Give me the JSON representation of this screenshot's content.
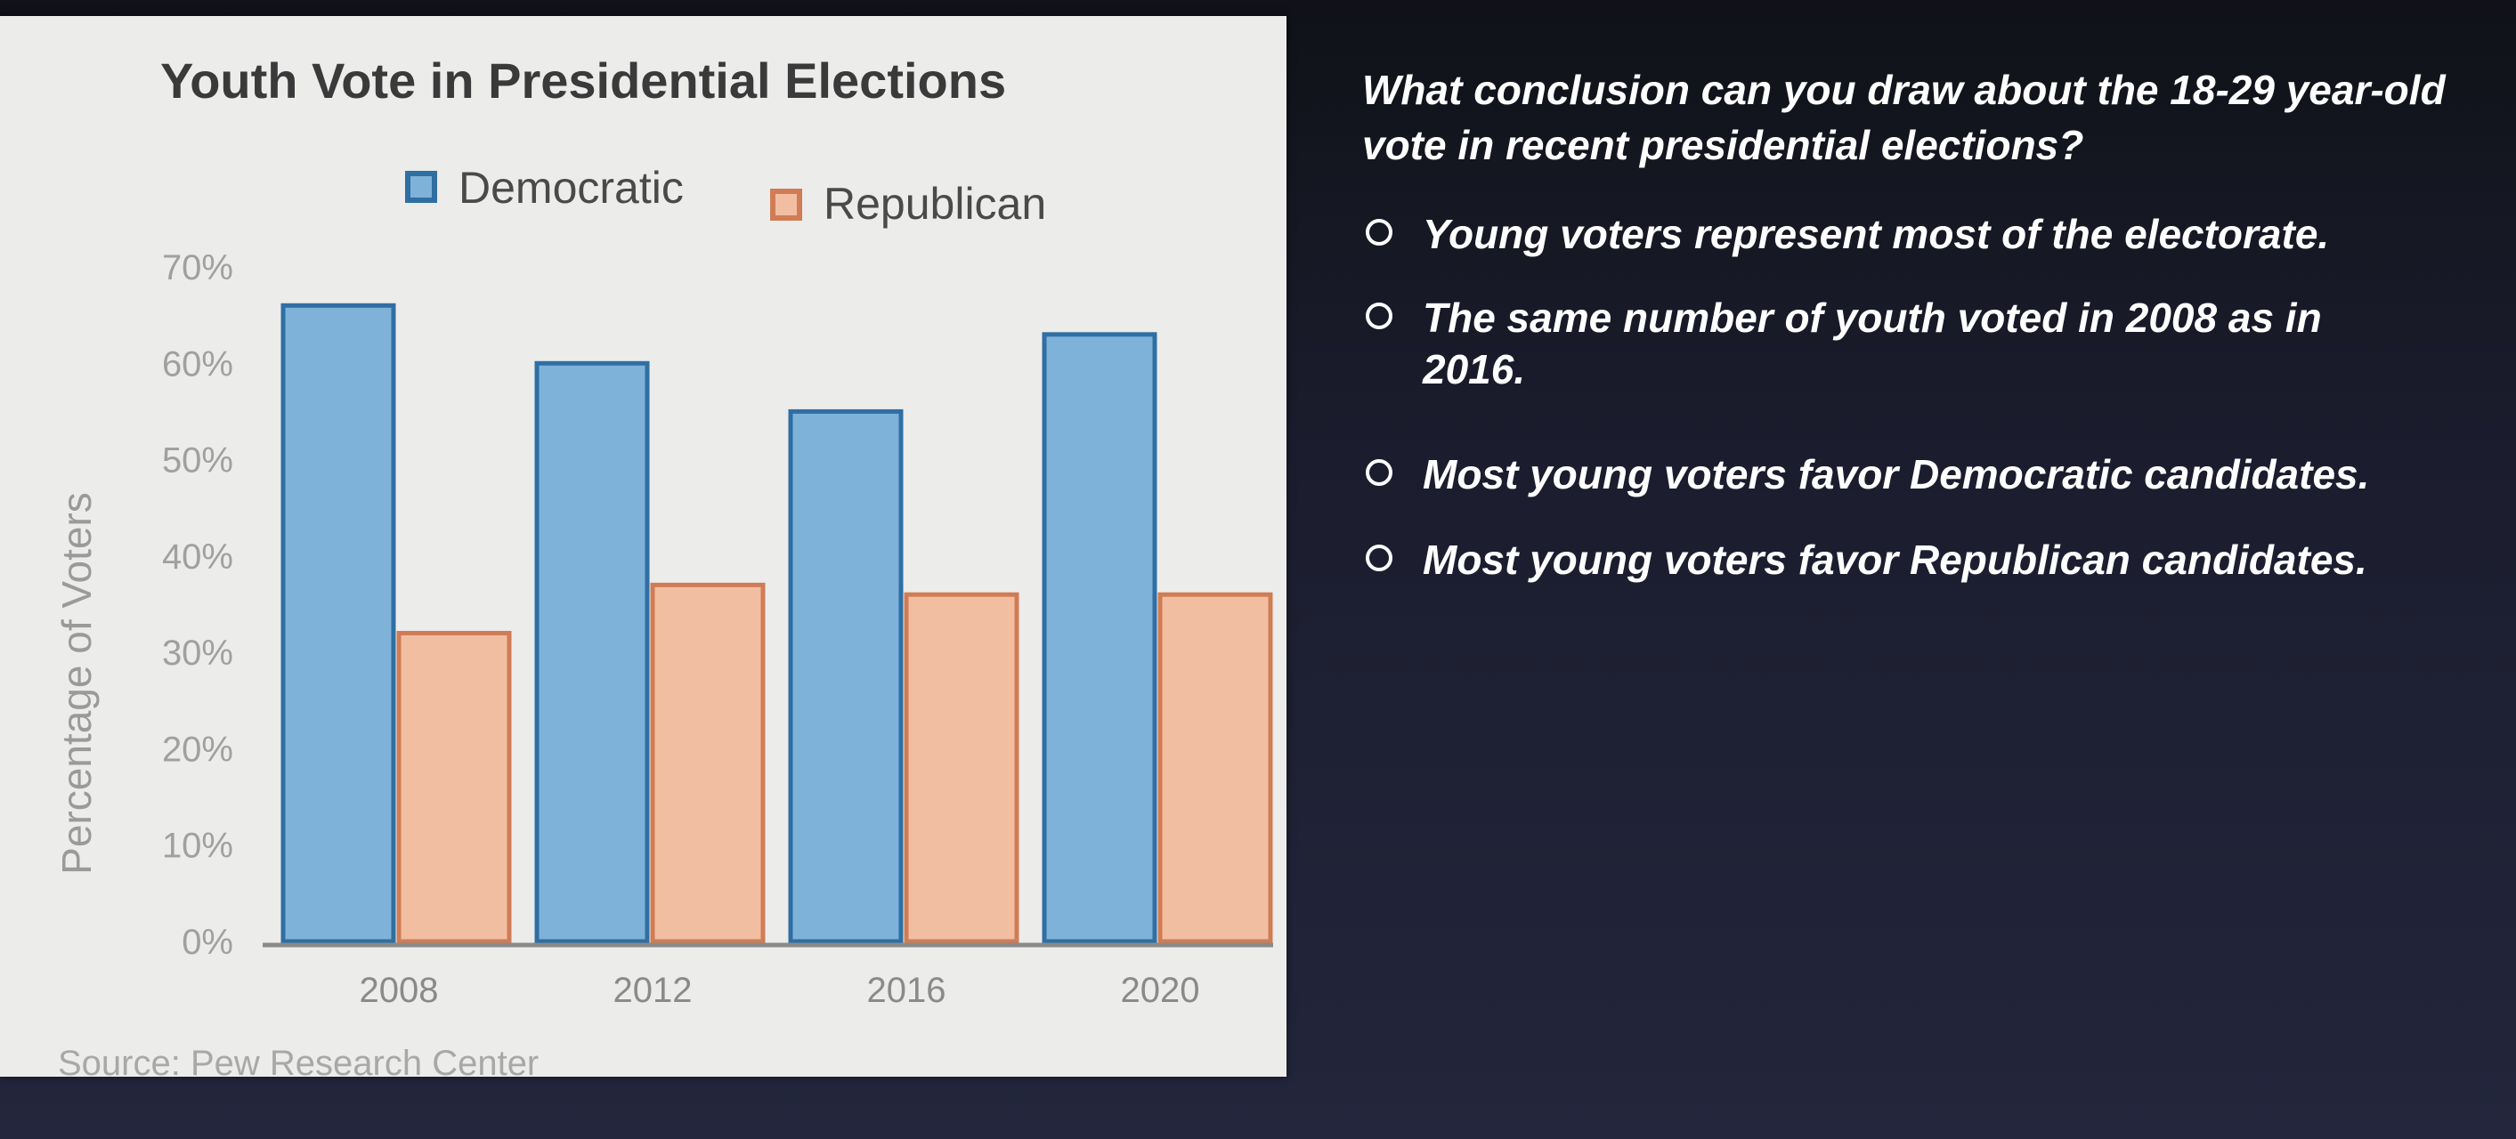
{
  "question": {
    "text": "What conclusion can you draw about the 18-29 year-old vote in recent presidential elections?",
    "options": [
      {
        "label": "Young voters represent most of the electorate."
      },
      {
        "label": "The same number of youth voted in 2008 as in 2016."
      },
      {
        "label": "Most young voters favor Democratic candidates."
      },
      {
        "label": "Most young voters favor Republican candidates."
      }
    ]
  },
  "chart_data": {
    "type": "bar",
    "title": "Youth Vote in Presidential Elections",
    "ylabel": "Percentage of Voters",
    "categories": [
      "2008",
      "2012",
      "2016",
      "2020"
    ],
    "series": [
      {
        "name": "Democratic",
        "values": [
          66,
          60,
          55,
          63
        ],
        "color": "#7fb2d9",
        "stroke": "#2f6fa3"
      },
      {
        "name": "Republican",
        "values": [
          32,
          37,
          36,
          36
        ],
        "color": "#f2bea2",
        "stroke": "#d07c55"
      }
    ],
    "ylim": [
      0,
      70
    ],
    "yticks": [
      "0%",
      "10%",
      "20%",
      "30%",
      "40%",
      "50%",
      "60%",
      "70%"
    ],
    "legend": "top",
    "grid": false,
    "source": "Source: Pew Research Center"
  }
}
